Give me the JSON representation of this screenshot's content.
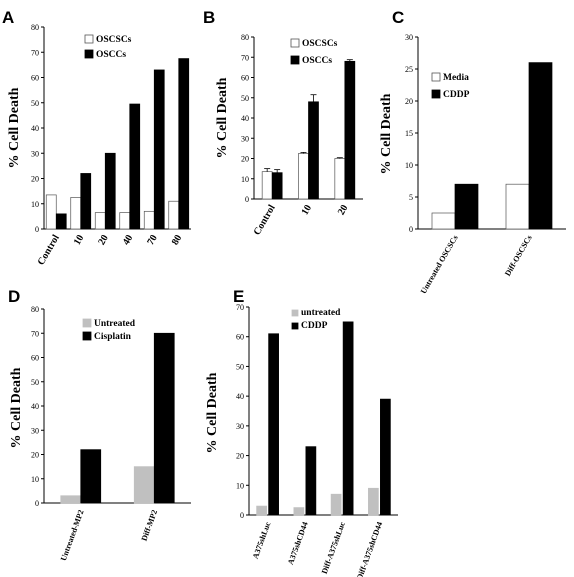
{
  "chart_data": [
    {
      "panel": "A",
      "type": "bar",
      "ylabel": "% Cell Death",
      "ylim": [
        0,
        80
      ],
      "yticks": [
        0,
        10,
        20,
        30,
        40,
        50,
        60,
        70,
        80
      ],
      "categories": [
        "Control",
        "10",
        "20",
        "40",
        "70",
        "80"
      ],
      "series": [
        {
          "name": "OSCSCs",
          "color": "#ffffff",
          "values": [
            13.5,
            12.5,
            6.5,
            6.5,
            7,
            11
          ]
        },
        {
          "name": "OSCCs",
          "color": "#000000",
          "values": [
            6,
            22,
            30,
            49.5,
            63,
            67.5
          ]
        }
      ],
      "legend": "top"
    },
    {
      "panel": "B",
      "type": "bar",
      "ylabel": "% Cell Death",
      "ylim": [
        0,
        80
      ],
      "yticks": [
        0,
        10,
        20,
        30,
        40,
        50,
        60,
        70,
        80
      ],
      "categories": [
        "Control",
        "10",
        "20"
      ],
      "series": [
        {
          "name": "OSCSCs",
          "color": "#ffffff",
          "values": [
            13.5,
            22.5,
            20
          ]
        },
        {
          "name": "OSCCs",
          "color": "#000000",
          "values": [
            13,
            48,
            68
          ]
        }
      ],
      "legend": "top-left"
    },
    {
      "panel": "C",
      "type": "bar",
      "ylabel": "% Cell Death",
      "ylim": [
        0,
        30
      ],
      "yticks": [
        0,
        5,
        10,
        15,
        20,
        25,
        30
      ],
      "categories": [
        "Untreated OSCSCs",
        "Diff-OSCSCs"
      ],
      "series": [
        {
          "name": "Media",
          "color": "#ffffff",
          "values": [
            2.5,
            7
          ]
        },
        {
          "name": "CDDP",
          "color": "#000000",
          "values": [
            7,
            26
          ]
        }
      ],
      "legend": "top-left"
    },
    {
      "panel": "D",
      "type": "bar",
      "ylabel": "% Cell Death",
      "ylim": [
        0,
        80
      ],
      "yticks": [
        0,
        10,
        20,
        30,
        40,
        50,
        60,
        70,
        80
      ],
      "categories": [
        "Untreated-MP2",
        "Diff-MP2"
      ],
      "series": [
        {
          "name": "Untreated",
          "color": "#c0c0c0",
          "values": [
            3,
            15
          ]
        },
        {
          "name": "Cisplatin",
          "color": "#000000",
          "values": [
            22,
            70
          ]
        }
      ],
      "legend": "top-left"
    },
    {
      "panel": "E",
      "type": "bar",
      "ylabel": "% Cell Death",
      "ylim": [
        0,
        70
      ],
      "yticks": [
        0,
        10,
        20,
        30,
        40,
        50,
        60,
        70
      ],
      "categories": [
        "A375shLuc",
        "A375shCD44",
        "Diff-A375shLuc",
        "Diff-A375shCD44"
      ],
      "series": [
        {
          "name": "untreated",
          "color": "#c0c0c0",
          "values": [
            3,
            2.5,
            7,
            9
          ]
        },
        {
          "name": "CDDP",
          "color": "#000000",
          "values": [
            61,
            23,
            65,
            39
          ]
        }
      ],
      "legend": "top-left"
    }
  ]
}
